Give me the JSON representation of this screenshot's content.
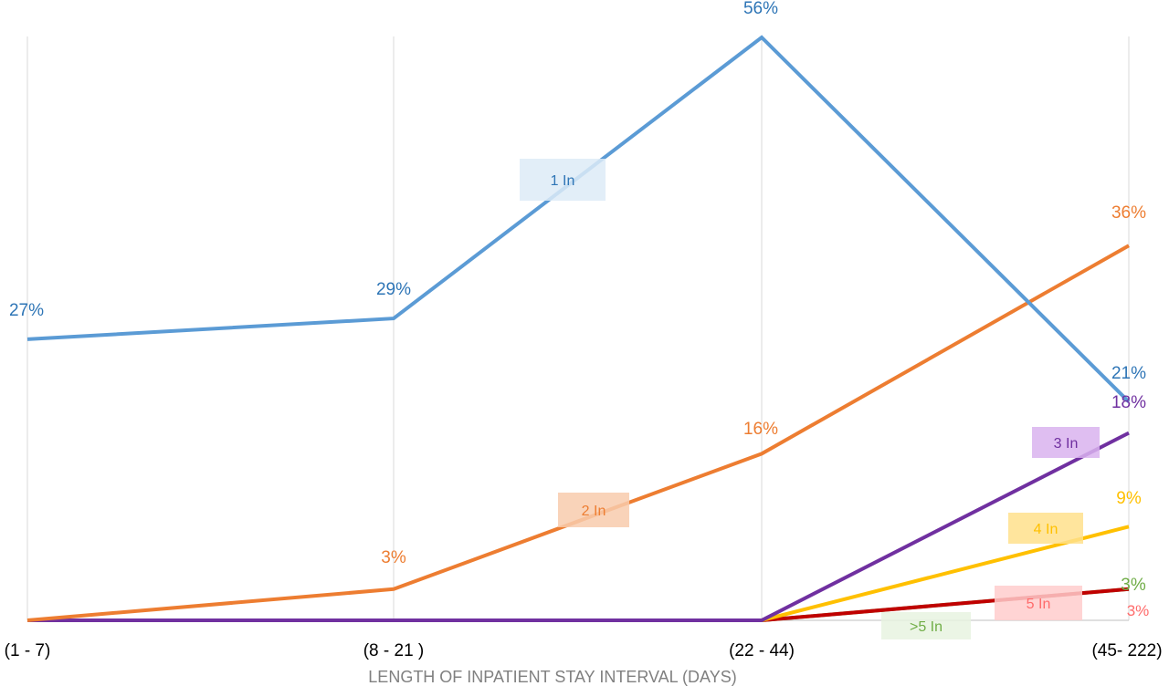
{
  "chart_data": {
    "type": "line",
    "title": "",
    "xlabel": "LENGTH OF INPATIENT  STAY INTERVAL (DAYS)",
    "ylabel": "",
    "categories": [
      "(1 - 7)",
      "(8 - 21 )",
      "(22 - 44)",
      "(45- 222)"
    ],
    "ylim": [
      0,
      56
    ],
    "grid": "vertical",
    "legend": "none",
    "series": [
      {
        "name": "1 In",
        "color": "#5B9BD5",
        "label_color": "#2E75B6",
        "tag_bg": "#DDEBF7",
        "values": [
          27,
          29,
          56,
          21
        ],
        "data_labels": [
          "27%",
          "29%",
          "56%",
          "21%"
        ]
      },
      {
        "name": "2 In",
        "color": "#ED7D31",
        "label_color": "#ED7D31",
        "tag_bg": "#F8CBAD",
        "values": [
          0,
          3,
          16,
          36
        ],
        "data_labels": [
          "",
          "3%",
          "16%",
          "36%"
        ]
      },
      {
        "name": "3 In",
        "color": "#7030A0",
        "label_color": "#7030A0",
        "tag_bg": "#D9B3EE",
        "values": [
          0,
          0,
          0,
          18
        ],
        "data_labels": [
          "",
          "",
          "",
          "18%"
        ]
      },
      {
        "name": "4 In",
        "color": "#FFC000",
        "label_color": "#FFC000",
        "tag_bg": "#FFE08C",
        "values": [
          0,
          0,
          0,
          9
        ],
        "data_labels": [
          "",
          "",
          "",
          "9%"
        ]
      },
      {
        "name": "5 In",
        "color": "#C00000",
        "label_color": "#FF6B6B",
        "tag_bg": "#FFCCCC",
        "values": [
          0,
          0,
          0,
          3
        ],
        "data_labels": [
          "",
          "",
          "",
          "3%"
        ]
      },
      {
        "name": ">5  In",
        "color": "#70AD47",
        "label_color": "#70AD47",
        "tag_bg": "#E8F3E1",
        "values": [
          0,
          0,
          0,
          3
        ],
        "data_labels": [
          "",
          "",
          "",
          "3%"
        ]
      }
    ]
  }
}
